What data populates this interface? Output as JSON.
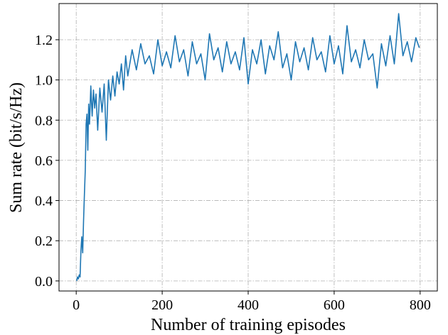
{
  "chart_data": {
    "type": "line",
    "title": "",
    "xlabel": "Number of training episodes",
    "ylabel": "Sum rate (bit/s/Hz)",
    "xlim": [
      -40,
      840
    ],
    "ylim": [
      -0.05,
      1.38
    ],
    "xticks": [
      0,
      200,
      400,
      600,
      800
    ],
    "xtick_labels": [
      "0",
      "200",
      "400",
      "600",
      "800"
    ],
    "yticks": [
      0.0,
      0.2,
      0.4,
      0.6,
      0.8,
      1.0,
      1.2
    ],
    "ytick_labels": [
      "0.0",
      "0.2",
      "0.4",
      "0.6",
      "0.8",
      "1.0",
      "1.2"
    ],
    "grid": true,
    "legend": "none",
    "colors": {
      "line": "#1f77b4",
      "grid": "#b0b0b0",
      "axes": "#000000"
    },
    "series": [
      {
        "x": [
          1,
          3,
          5,
          7,
          9,
          11,
          13,
          15,
          17,
          19,
          21,
          23,
          25,
          27,
          29,
          31,
          34,
          37,
          40,
          43,
          46,
          50,
          55,
          60,
          65,
          70,
          75,
          80,
          85,
          90,
          95,
          100,
          105,
          110,
          115,
          120,
          130,
          140,
          150,
          160,
          170,
          180,
          190,
          200,
          210,
          220,
          230,
          240,
          250,
          260,
          270,
          280,
          290,
          300,
          310,
          320,
          330,
          340,
          350,
          360,
          370,
          380,
          390,
          400,
          410,
          420,
          430,
          440,
          450,
          460,
          470,
          480,
          490,
          500,
          510,
          520,
          530,
          540,
          550,
          560,
          570,
          580,
          590,
          600,
          610,
          620,
          630,
          640,
          650,
          660,
          670,
          680,
          690,
          700,
          710,
          720,
          730,
          740,
          750,
          760,
          770,
          780,
          790,
          798
        ],
        "y": [
          0.0,
          0.02,
          0.01,
          0.03,
          0.02,
          0.15,
          0.22,
          0.14,
          0.3,
          0.43,
          0.55,
          0.78,
          0.83,
          0.65,
          0.88,
          0.78,
          0.97,
          0.82,
          0.95,
          0.86,
          0.93,
          0.75,
          0.96,
          0.84,
          0.98,
          0.7,
          1.0,
          0.9,
          1.02,
          0.92,
          1.04,
          0.98,
          1.08,
          0.95,
          1.12,
          1.02,
          1.15,
          1.05,
          1.18,
          1.08,
          1.12,
          1.03,
          1.2,
          1.07,
          1.14,
          1.06,
          1.22,
          1.09,
          1.15,
          1.02,
          1.19,
          1.08,
          1.13,
          1.0,
          1.23,
          1.1,
          1.16,
          1.04,
          1.19,
          1.08,
          1.14,
          1.05,
          1.21,
          0.98,
          1.15,
          1.08,
          1.2,
          1.03,
          1.17,
          1.1,
          1.24,
          1.06,
          1.13,
          1.0,
          1.19,
          1.09,
          1.16,
          1.05,
          1.21,
          1.1,
          1.14,
          1.04,
          1.22,
          1.08,
          1.17,
          1.03,
          1.27,
          1.09,
          1.15,
          1.06,
          1.2,
          1.1,
          1.13,
          0.96,
          1.18,
          1.07,
          1.22,
          1.08,
          1.33,
          1.12,
          1.19,
          1.09,
          1.21,
          1.16
        ]
      }
    ]
  }
}
